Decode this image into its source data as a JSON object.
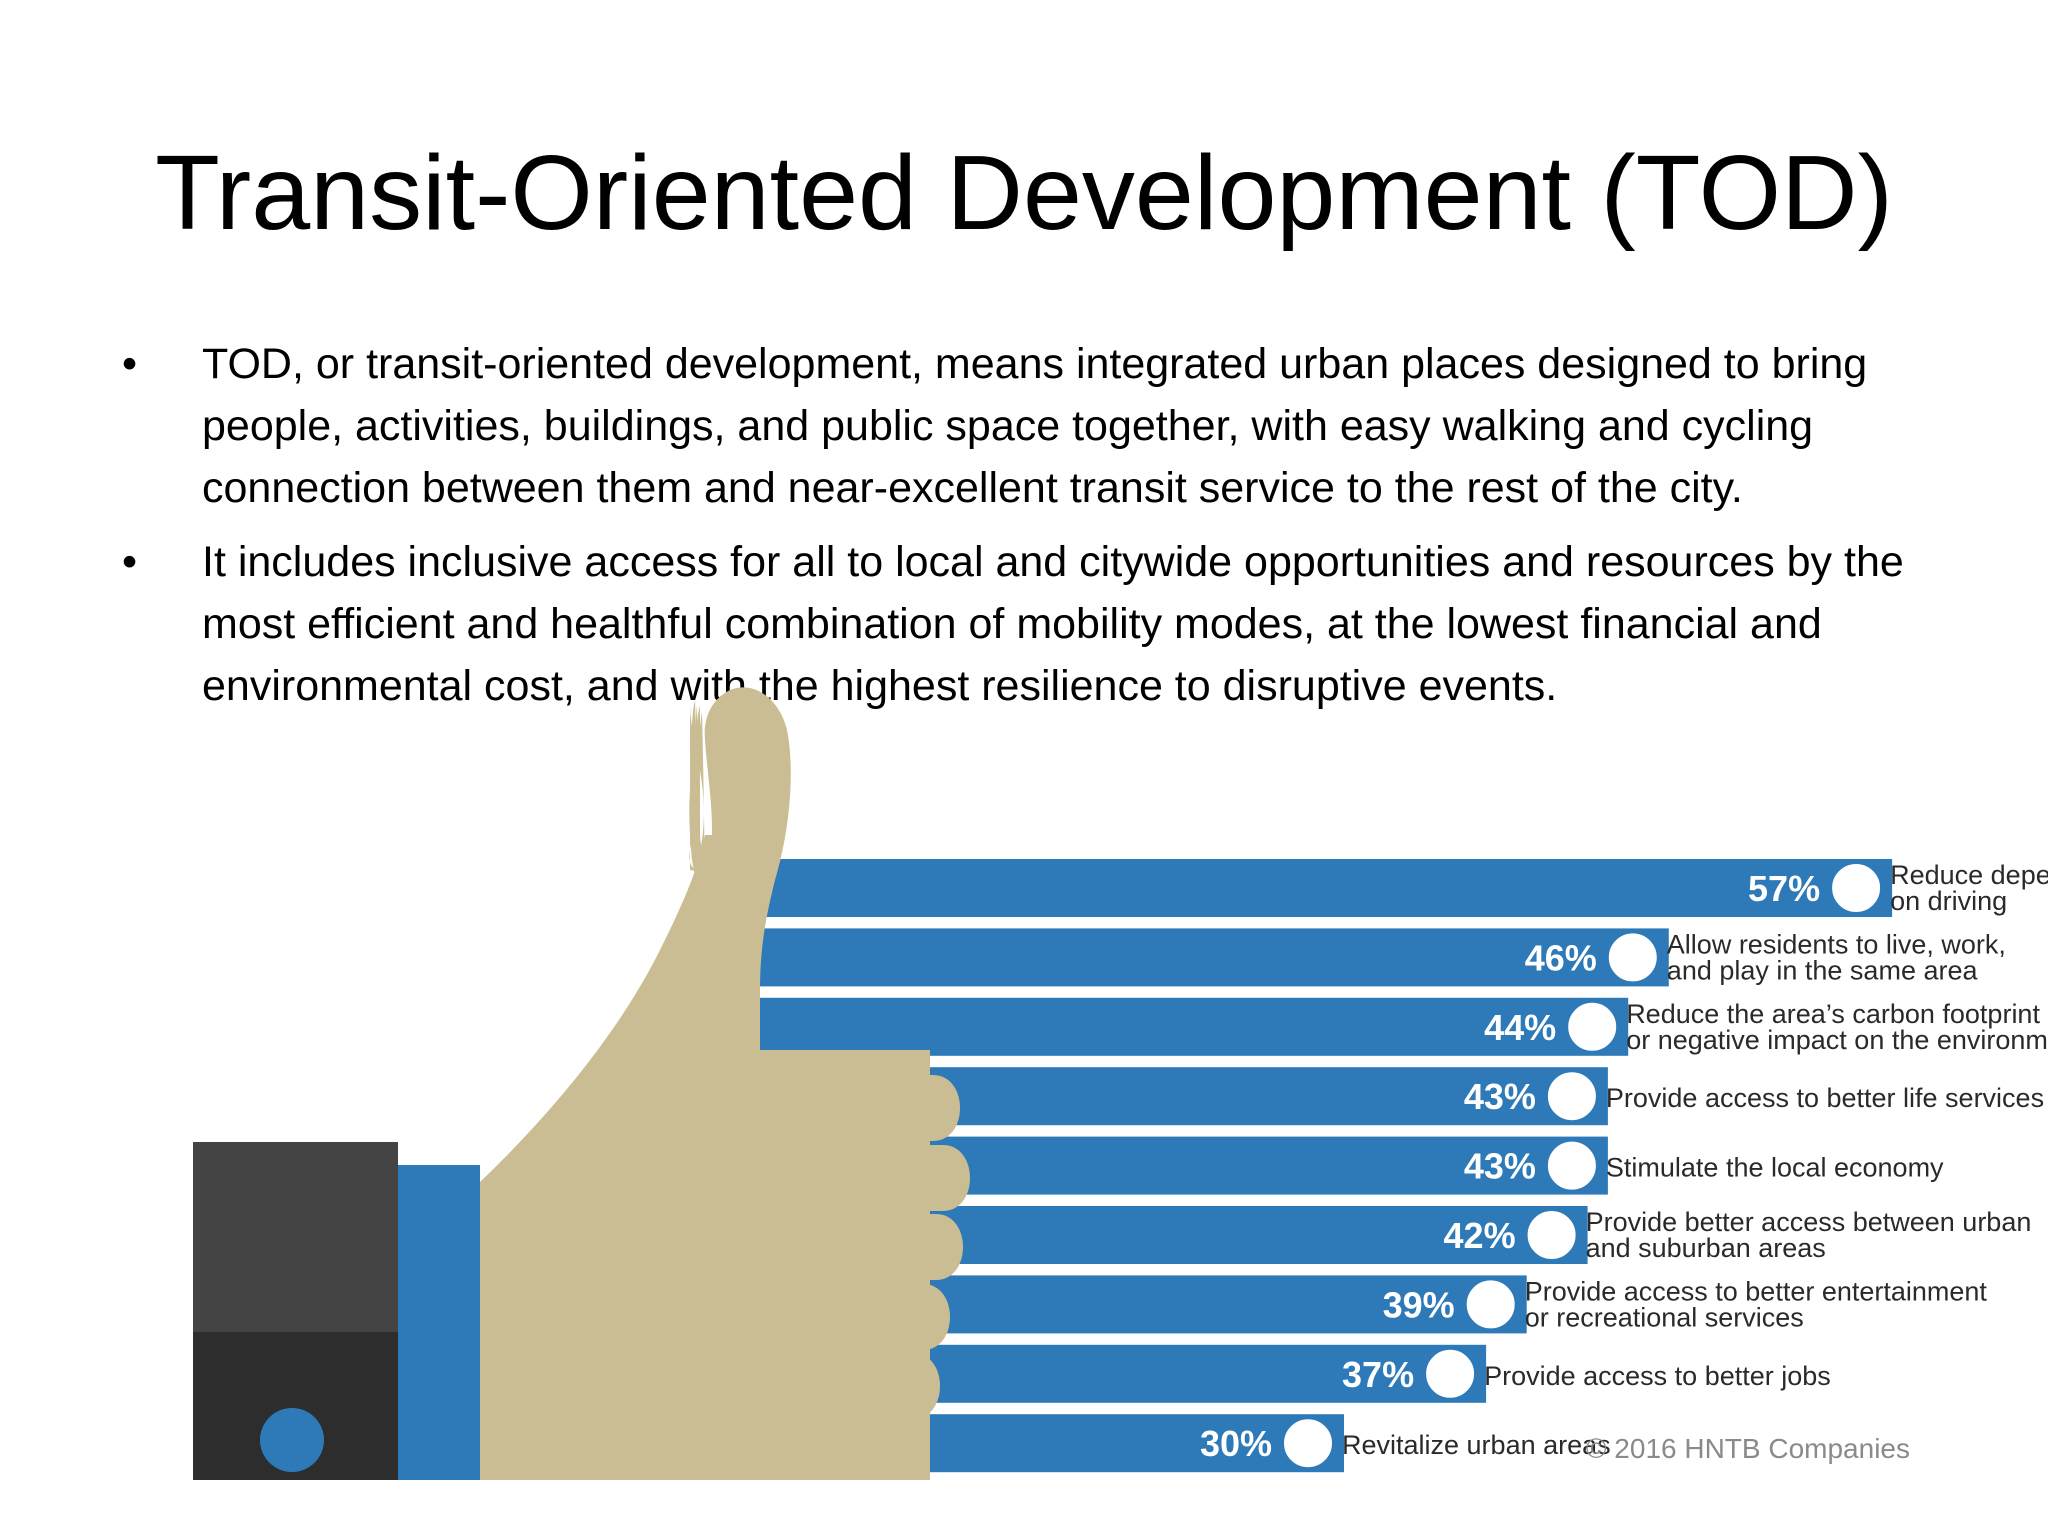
{
  "slide": {
    "title": "Transit-Oriented Development (TOD)",
    "bullets": [
      "TOD, or transit-oriented development, means integrated urban places designed to bring people, activities, buildings, and public space together, with easy walking and cycling connection between them and near-excellent transit service to the rest of the city.",
      "It includes inclusive access for all to local and citywide opportunities and resources by the most efficient and healthful combination of mobility modes, at the lowest financial and environmental cost, and with the highest resilience to disruptive events."
    ],
    "bullet_symbol": "•"
  },
  "chart_data": {
    "type": "bar",
    "orientation": "horizontal",
    "categories": [
      "Reduce dependence on driving",
      "Allow residents to live, work, and play in the same area",
      "Reduce the area's carbon footprint or negative impact on the environment",
      "Provide access to better life services",
      "Stimulate the local economy",
      "Provide better access between urban and suburban areas",
      "Provide access to better entertainment or recreational services",
      "Provide access to better jobs",
      "Revitalize urban areas"
    ],
    "label_lines": [
      [
        "Reduce dependence",
        "on driving"
      ],
      [
        "Allow residents to live, work,",
        "and play in the same area"
      ],
      [
        "Reduce the area’s carbon footprint",
        "or negative impact on the environment"
      ],
      [
        "Provide access to better life services"
      ],
      [
        "Stimulate the local economy"
      ],
      [
        "Provide better access between urban",
        "and suburban areas"
      ],
      [
        "Provide access to better entertainment",
        "or recreational services"
      ],
      [
        "Provide access to better jobs"
      ],
      [
        "Revitalize urban areas"
      ]
    ],
    "values": [
      57,
      46,
      44,
      43,
      43,
      42,
      39,
      37,
      30
    ],
    "value_labels": [
      "57%",
      "46%",
      "44%",
      "43%",
      "43%",
      "42%",
      "39%",
      "37%",
      "30%"
    ],
    "icons": [
      "pedestrian-icon",
      "bicycle-icon",
      "train-icon",
      "bus-icon",
      "dollar-icon",
      "map-pin-icon",
      "camera-icon",
      "briefcase-icon",
      "city-icon"
    ],
    "credit": "© 2016 HNTB Companies",
    "colors": {
      "bar": "#2e7ab9",
      "hand": "#cbbd93",
      "cuff": "#2e7ab9",
      "sleeve_top": "#444444",
      "sleeve_bottom": "#2d2d2d",
      "button": "#2e7ab9",
      "icon_fill": "#ffffff",
      "icon_stroke": "#2e7ab9",
      "label_text": "#2a2a2a",
      "value_text": "#ffffff",
      "credit_text": "#8a8a8a"
    }
  }
}
